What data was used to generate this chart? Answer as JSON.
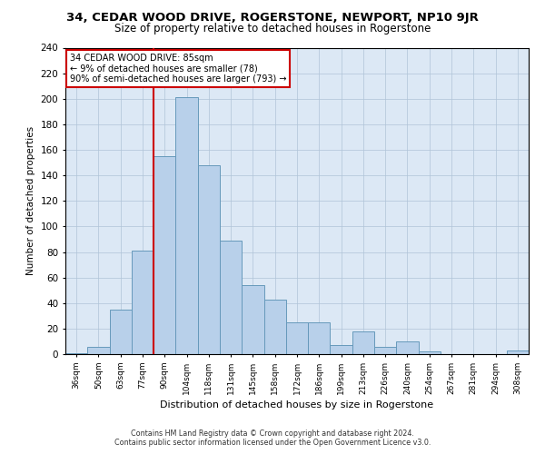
{
  "title": "34, CEDAR WOOD DRIVE, ROGERSTONE, NEWPORT, NP10 9JR",
  "subtitle": "Size of property relative to detached houses in Rogerstone",
  "xlabel": "Distribution of detached houses by size in Rogerstone",
  "ylabel": "Number of detached properties",
  "categories": [
    "36sqm",
    "50sqm",
    "63sqm",
    "77sqm",
    "90sqm",
    "104sqm",
    "118sqm",
    "131sqm",
    "145sqm",
    "158sqm",
    "172sqm",
    "186sqm",
    "199sqm",
    "213sqm",
    "226sqm",
    "240sqm",
    "254sqm",
    "267sqm",
    "281sqm",
    "294sqm",
    "308sqm"
  ],
  "values": [
    1,
    6,
    35,
    81,
    155,
    201,
    148,
    89,
    54,
    43,
    25,
    25,
    7,
    18,
    6,
    10,
    2,
    0,
    0,
    0,
    3
  ],
  "bar_color": "#b8d0ea",
  "bar_edge_color": "#6699bb",
  "vline_color": "#cc0000",
  "annotation_text": "34 CEDAR WOOD DRIVE: 85sqm\n← 9% of detached houses are smaller (78)\n90% of semi-detached houses are larger (793) →",
  "annotation_box_color": "#ffffff",
  "annotation_box_edge": "#cc0000",
  "ylim": [
    0,
    240
  ],
  "yticks": [
    0,
    20,
    40,
    60,
    80,
    100,
    120,
    140,
    160,
    180,
    200,
    220,
    240
  ],
  "background_color": "#ffffff",
  "plot_bg_color": "#dce8f5",
  "grid_color": "#b0c4d8",
  "footer_line1": "Contains HM Land Registry data © Crown copyright and database right 2024.",
  "footer_line2": "Contains public sector information licensed under the Open Government Licence v3.0."
}
